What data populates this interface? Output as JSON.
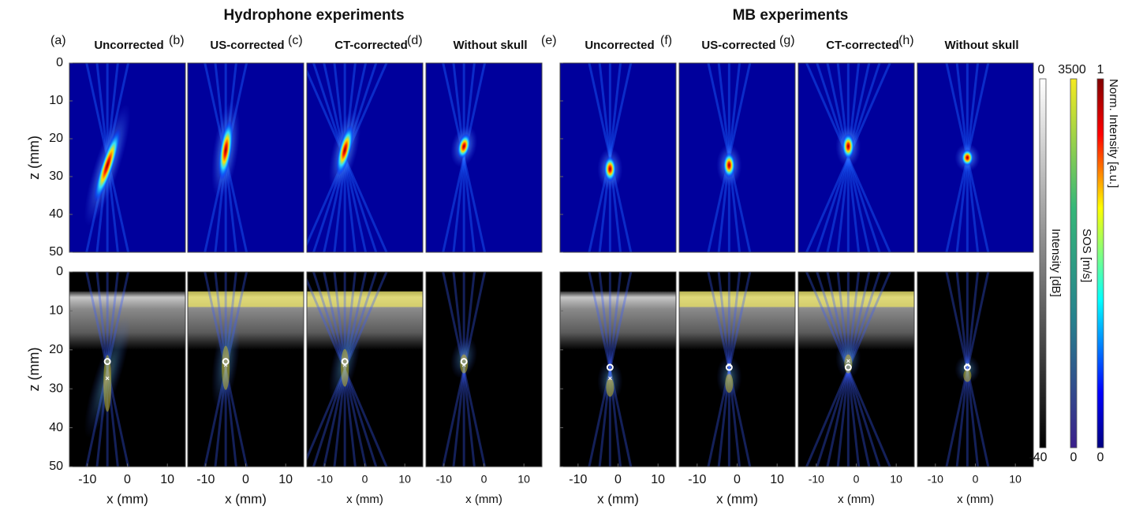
{
  "groups": [
    {
      "title": "Hydrophone experiments"
    },
    {
      "title": "MB experiments"
    }
  ],
  "panels": [
    {
      "letter": "(a)",
      "label": "Uncorrected"
    },
    {
      "letter": "(b)",
      "label": "US-corrected"
    },
    {
      "letter": "(c)",
      "label": "CT-corrected"
    },
    {
      "letter": "(d)",
      "label": "Without skull"
    },
    {
      "letter": "(e)",
      "label": "Uncorrected"
    },
    {
      "letter": "(f)",
      "label": "US-corrected"
    },
    {
      "letter": "(g)",
      "label": "CT-corrected"
    },
    {
      "letter": "(h)",
      "label": "Without skull"
    }
  ],
  "y_axis": {
    "label": "z (mm)",
    "ylim": [
      0,
      50
    ],
    "yticks": [
      0,
      10,
      20,
      30,
      40,
      50
    ]
  },
  "x_axis": {
    "label": "x (mm)",
    "xlim": [
      -14.5,
      14.5
    ],
    "xticks": [
      -10,
      0,
      10
    ]
  },
  "colorbars": [
    {
      "label": "Intensity [dB]",
      "top": 0,
      "bottom": -40
    },
    {
      "label": "SOS [m/s]",
      "top": 3500,
      "bottom": 0
    },
    {
      "label": "Norm. Intensity [a.u.]",
      "top": 1,
      "bottom": 0
    }
  ]
}
